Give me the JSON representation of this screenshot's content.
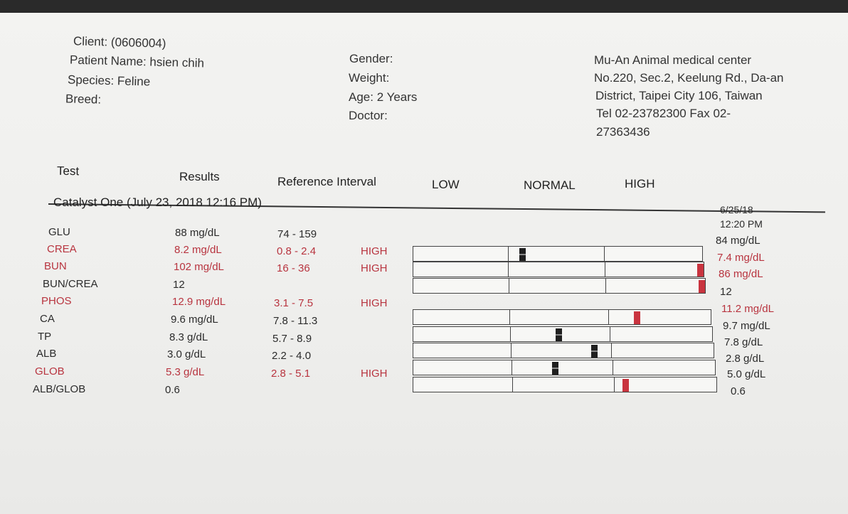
{
  "client": {
    "client_line": "Client: (0606004)",
    "patient_line": "Patient Name: hsien chih",
    "species_line": "Species: Feline",
    "breed_line": "Breed:"
  },
  "patient_info": {
    "gender_line": "Gender:",
    "weight_line": "Weight:",
    "age_line": "Age: 2 Years",
    "doctor_line": "Doctor:"
  },
  "clinic": {
    "name": "Mu-An Animal medical center",
    "address_1": "No.220, Sec.2, Keelung Rd., Da-an",
    "address_2": "District, Taipei City 106, Taiwan",
    "phone_1": "Tel 02-23782300  Fax 02-",
    "phone_2": "27363436"
  },
  "columns": {
    "test": "Test",
    "results": "Results",
    "reference": "Reference Interval",
    "low": "LOW",
    "normal": "NORMAL",
    "high": "HIGH"
  },
  "section_title": "Catalyst One (July 23, 2018 12:16 PM)",
  "previous": {
    "date": "6/25/18",
    "time": "12:20 PM"
  },
  "colors": {
    "abnormal_text": "#b8343f",
    "marker_high": "#c9343f",
    "marker_normal": "#1f1f1f"
  },
  "rows": [
    {
      "test": "GLU",
      "result": "88 mg/dL",
      "ref": "74 - 159",
      "flag": "",
      "prev": "84 mg/dL",
      "abnormal": false,
      "prev_abnormal": false
    },
    {
      "test": "CREA",
      "result": "8.2 mg/dL",
      "ref": "0.8 - 2.4",
      "flag": "HIGH",
      "prev": "7.4 mg/dL",
      "abnormal": true,
      "prev_abnormal": true
    },
    {
      "test": "BUN",
      "result": "102 mg/dL",
      "ref": "16 - 36",
      "flag": "HIGH",
      "prev": "86 mg/dL",
      "abnormal": true,
      "prev_abnormal": true
    },
    {
      "test": "BUN/CREA",
      "result": "12",
      "ref": "",
      "flag": "",
      "prev": "12",
      "abnormal": false,
      "prev_abnormal": false
    },
    {
      "test": "PHOS",
      "result": "12.9 mg/dL",
      "ref": "3.1 - 7.5",
      "flag": "HIGH",
      "prev": "11.2 mg/dL",
      "abnormal": true,
      "prev_abnormal": true
    },
    {
      "test": "CA",
      "result": "9.6 mg/dL",
      "ref": "7.8 - 11.3",
      "flag": "",
      "prev": "9.7 mg/dL",
      "abnormal": false,
      "prev_abnormal": false
    },
    {
      "test": "TP",
      "result": "8.3 g/dL",
      "ref": "5.7 - 8.9",
      "flag": "",
      "prev": "7.8 g/dL",
      "abnormal": false,
      "prev_abnormal": false
    },
    {
      "test": "ALB",
      "result": "3.0 g/dL",
      "ref": "2.2 - 4.0",
      "flag": "",
      "prev": "2.8 g/dL",
      "abnormal": false,
      "prev_abnormal": false
    },
    {
      "test": "GLOB",
      "result": "5.3 g/dL",
      "ref": "2.8 - 5.1",
      "flag": "HIGH",
      "prev": "5.0 g/dL",
      "abnormal": true,
      "prev_abnormal": false
    },
    {
      "test": "ALB/GLOB",
      "result": "0.6",
      "ref": "",
      "flag": "",
      "prev": "0.6",
      "abnormal": false,
      "prev_abnormal": false
    }
  ],
  "bar_markers": [
    {
      "test": "GLU",
      "zone": "normal",
      "position": 0.12,
      "state": "normal"
    },
    {
      "test": "CREA",
      "zone": "high",
      "position": 1.0,
      "state": "high"
    },
    {
      "test": "BUN",
      "zone": "high",
      "position": 1.0,
      "state": "high"
    },
    {
      "test": "PHOS",
      "zone": "high",
      "position": 0.25,
      "state": "high"
    },
    {
      "test": "CA",
      "zone": "normal",
      "position": 0.46,
      "state": "normal"
    },
    {
      "test": "TP",
      "zone": "normal",
      "position": 0.8,
      "state": "normal"
    },
    {
      "test": "ALB",
      "zone": "normal",
      "position": 0.4,
      "state": "normal"
    },
    {
      "test": "GLOB",
      "zone": "high",
      "position": 0.08,
      "state": "high"
    }
  ]
}
